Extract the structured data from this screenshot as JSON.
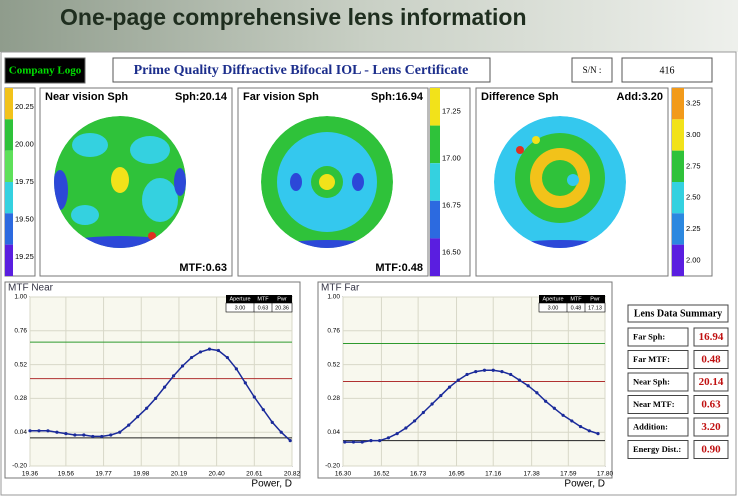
{
  "header": {
    "title": "One-page comprehensive lens information"
  },
  "certificate": {
    "logo": "Company Logo",
    "title": "Prime Quality Diffractive Bifocal IOL - Lens Certificate",
    "sn_label": "S/N :",
    "sn": "416"
  },
  "maps": [
    {
      "title": "Near vision Sph",
      "value": "Sph:20.14",
      "mtf": "MTF:0.63",
      "scale": [
        "20.25",
        "20.00",
        "19.75",
        "19.50",
        "19.25"
      ]
    },
    {
      "title": "Far vision Sph",
      "value": "Sph:16.94",
      "mtf": "MTF:0.48",
      "scale": [
        "17.25",
        "17.00",
        "16.75",
        "16.50"
      ]
    },
    {
      "title": "Difference Sph",
      "value": "Add:3.20",
      "scale": [
        "3.25",
        "3.00",
        "2.75",
        "2.50",
        "2.25",
        "2.00"
      ]
    }
  ],
  "charts": [
    {
      "type": "line",
      "title": "MTF Near",
      "x_label": "Power, D",
      "table": {
        "headers": [
          "Aperture",
          "MTF",
          "Pwr"
        ],
        "row": [
          "3.00",
          "0.63",
          "20.36"
        ]
      },
      "x": [
        19.36,
        19.41,
        19.46,
        19.51,
        19.56,
        19.61,
        19.66,
        19.71,
        19.76,
        19.81,
        19.86,
        19.91,
        19.96,
        20.01,
        20.06,
        20.11,
        20.16,
        20.21,
        20.26,
        20.31,
        20.36,
        20.41,
        20.46,
        20.51,
        20.56,
        20.61,
        20.66,
        20.71,
        20.76,
        20.81
      ],
      "values": [
        0.05,
        0.05,
        0.05,
        0.04,
        0.03,
        0.02,
        0.02,
        0.01,
        0.01,
        0.02,
        0.04,
        0.09,
        0.15,
        0.21,
        0.28,
        0.36,
        0.44,
        0.51,
        0.57,
        0.61,
        0.63,
        0.62,
        0.57,
        0.49,
        0.39,
        0.29,
        0.2,
        0.11,
        0.04,
        -0.02
      ],
      "color": "#1a2a9a",
      "xlim": [
        19.36,
        20.82
      ],
      "xticks": [
        19.36,
        19.56,
        19.77,
        19.98,
        20.19,
        {
          "value": 20.4,
          "label": "20.40"
        },
        20.61,
        20.82
      ],
      "ylim": [
        -0.2,
        1
      ],
      "yticks": [
        {
          "value": -0.2,
          "label": "-0.20"
        },
        0.04,
        0.28,
        0.52,
        0.76,
        {
          "value": 1,
          "label": "1.00"
        }
      ],
      "grid": true,
      "reference_lines": [
        {
          "value": 0.68,
          "color": "#2e9a2e"
        },
        {
          "value": 0.42,
          "color": "#b03030"
        },
        {
          "value": 0.0,
          "color": "#222222"
        }
      ]
    },
    {
      "type": "line",
      "title": "MTF Far",
      "x_label": "Power, D",
      "table": {
        "headers": [
          "Aperture",
          "MTF",
          "Pwr"
        ],
        "row": [
          "3.00",
          "0.48",
          "17.13"
        ]
      },
      "x": [
        16.31,
        16.36,
        16.41,
        16.46,
        16.51,
        16.56,
        16.61,
        16.66,
        16.71,
        16.76,
        16.81,
        16.86,
        16.91,
        16.96,
        17.01,
        17.06,
        17.11,
        17.16,
        17.21,
        17.26,
        17.31,
        17.36,
        17.41,
        17.46,
        17.51,
        17.56,
        17.61,
        17.66,
        17.71,
        17.76
      ],
      "values": [
        -0.03,
        -0.03,
        -0.03,
        -0.02,
        -0.02,
        0.0,
        0.03,
        0.07,
        0.12,
        0.18,
        0.24,
        0.3,
        0.36,
        0.41,
        0.45,
        0.47,
        0.48,
        0.48,
        0.47,
        0.45,
        0.41,
        0.37,
        0.32,
        0.26,
        0.21,
        0.16,
        0.12,
        0.08,
        0.05,
        0.03
      ],
      "color": "#1a2a9a",
      "xlim": [
        16.3,
        17.8
      ],
      "xticks": [
        {
          "value": 16.3,
          "label": "16.30"
        },
        16.52,
        16.73,
        16.95,
        17.16,
        17.38,
        17.59,
        {
          "value": 17.8,
          "label": "17.80"
        }
      ],
      "ylim": [
        -0.2,
        1
      ],
      "yticks": [
        {
          "value": -0.2,
          "label": "-0.20"
        },
        0.04,
        0.28,
        0.52,
        0.76,
        {
          "value": 1,
          "label": "1.00"
        }
      ],
      "grid": true,
      "reference_lines": [
        {
          "value": 0.67,
          "color": "#2e9a2e"
        },
        {
          "value": 0.4,
          "color": "#b03030"
        },
        {
          "value": -0.02,
          "color": "#222222"
        }
      ]
    }
  ],
  "summary": {
    "title": "Lens Data Summary",
    "rows": [
      [
        "Far Sph:",
        "16.94"
      ],
      [
        "Far MTF:",
        "0.48"
      ],
      [
        "Near Sph:",
        "20.14"
      ],
      [
        "Near MTF:",
        "0.63"
      ],
      [
        "Addition:",
        "3.20"
      ],
      [
        "Energy Dist.:",
        "0.90"
      ]
    ]
  }
}
